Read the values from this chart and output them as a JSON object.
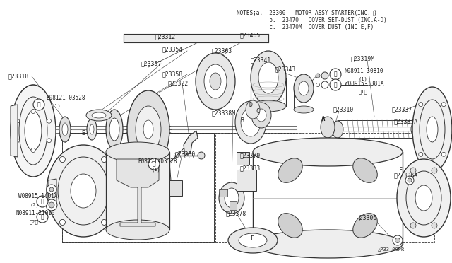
{
  "bg_color": "#f0f0f0",
  "line_color": "#333333",
  "text_color": "#222222",
  "fig_width": 6.4,
  "fig_height": 3.72,
  "dpi": 100,
  "notes_line1": "NOTES;a.  23300   MOTOR ASSY-STARTER(INC.※)",
  "notes_line2": "          b.  23470   COVER SET-DUST (INC.A-D)",
  "notes_line3": "          c.  23470M  COVER DUST (INC.E,F)",
  "caption": "△P33_00PR",
  "font_size": 5.5
}
